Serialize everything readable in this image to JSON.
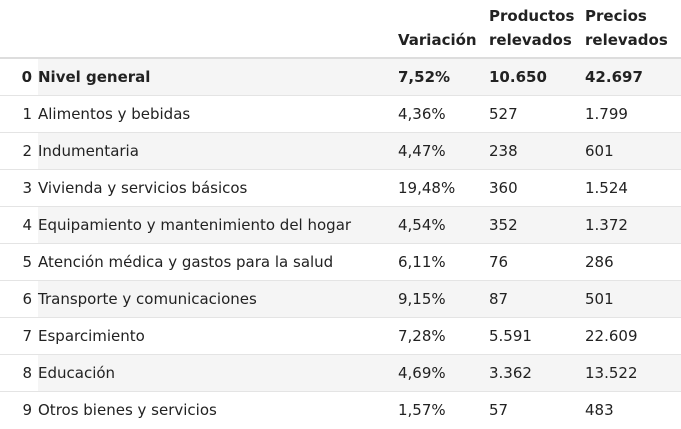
{
  "table": {
    "columns": {
      "variacion": "Variación",
      "productos_line1": "Productos",
      "productos_line2": "relevados",
      "precios_line1": "Precios",
      "precios_line2": "relevados"
    },
    "rows": [
      {
        "index": "0",
        "categoria": "Nivel general",
        "variacion": "7,52%",
        "productos": "10.650",
        "precios": "42.697"
      },
      {
        "index": "1",
        "categoria": "Alimentos y bebidas",
        "variacion": "4,36%",
        "productos": "527",
        "precios": "1.799"
      },
      {
        "index": "2",
        "categoria": "Indumentaria",
        "variacion": "4,47%",
        "productos": "238",
        "precios": "601"
      },
      {
        "index": "3",
        "categoria": "Vivienda y servicios básicos",
        "variacion": "19,48%",
        "productos": "360",
        "precios": "1.524"
      },
      {
        "index": "4",
        "categoria": "Equipamiento y mantenimiento del hogar",
        "variacion": "4,54%",
        "productos": "352",
        "precios": "1.372"
      },
      {
        "index": "5",
        "categoria": "Atención médica y gastos para la salud",
        "variacion": "6,11%",
        "productos": "76",
        "precios": "286"
      },
      {
        "index": "6",
        "categoria": "Transporte y comunicaciones",
        "variacion": "9,15%",
        "productos": "87",
        "precios": "501"
      },
      {
        "index": "7",
        "categoria": "Esparcimiento",
        "variacion": "7,28%",
        "productos": "5.591",
        "precios": "22.609"
      },
      {
        "index": "8",
        "categoria": "Educación",
        "variacion": "4,69%",
        "productos": "3.362",
        "precios": "13.522"
      },
      {
        "index": "9",
        "categoria": "Otros bienes y servicios",
        "variacion": "1,57%",
        "productos": "57",
        "precios": "483"
      }
    ]
  }
}
